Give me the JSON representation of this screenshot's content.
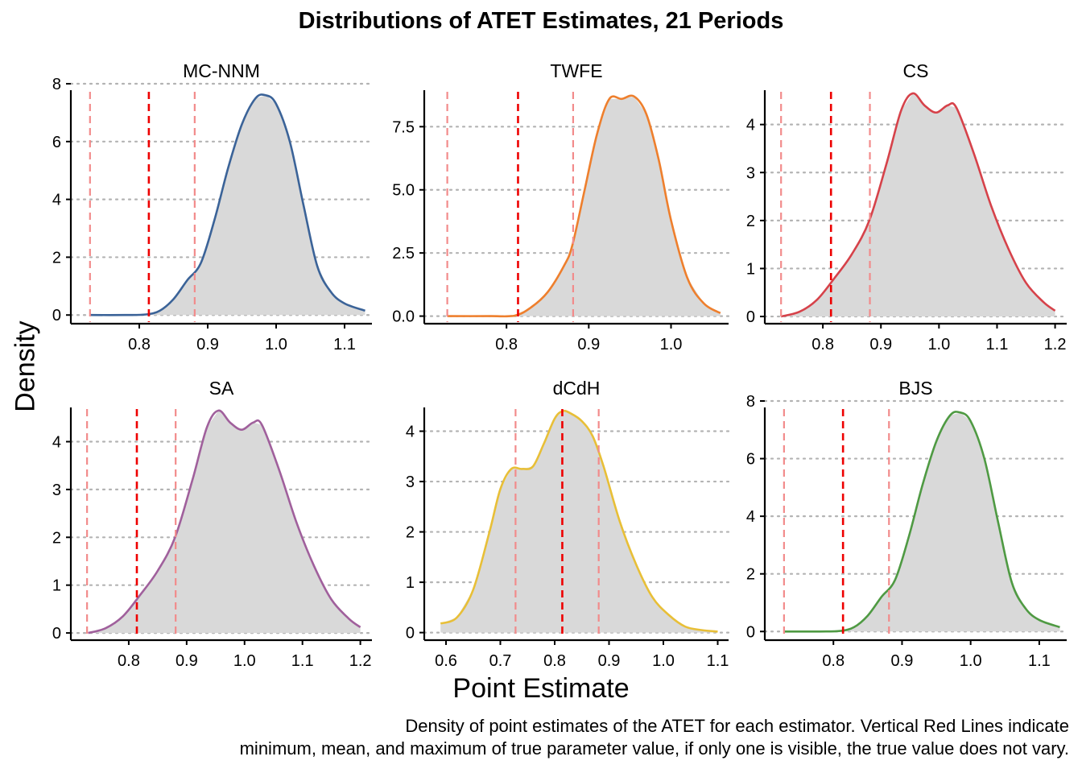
{
  "title": "Distributions of ATET Estimates, 21 Periods",
  "xlabel": "Point Estimate",
  "ylabel": "Density",
  "caption_line1": "Density of point estimates of the ATET for each estimator. Vertical Red Lines indicate",
  "caption_line2": "minimum, mean, and maximum of true parameter value, if only one is visible, the true value does not vary.",
  "colors": {
    "fill": "#d9d9d9",
    "grid": "#b3b3b3",
    "vline_mean": "#ee0000",
    "vline_minmax": "#f28b8b"
  },
  "chart_data": [
    {
      "type": "area",
      "title": "MC-NNM",
      "color": "#3b6398",
      "xlim": [
        0.7,
        1.14
      ],
      "ylim": [
        -0.3,
        8
      ],
      "xticks": [
        0.8,
        0.9,
        1.0
      ],
      "xticks_extra": [
        1.1
      ],
      "xtick_labels": [
        "0.8",
        "0.9",
        "1.0",
        "1.1"
      ],
      "yticks": [
        0,
        2,
        4,
        6,
        8
      ],
      "ytick_labels": [
        "0",
        "2",
        "4",
        "6",
        "8"
      ],
      "vlines": {
        "min": 0.728,
        "mean": 0.814,
        "max": 0.881
      },
      "x": [
        0.728,
        0.78,
        0.81,
        0.83,
        0.85,
        0.87,
        0.89,
        0.91,
        0.93,
        0.95,
        0.97,
        0.985,
        1.0,
        1.02,
        1.04,
        1.06,
        1.08,
        1.1,
        1.13
      ],
      "y": [
        0.0,
        0.0,
        0.02,
        0.15,
        0.55,
        1.2,
        1.8,
        3.3,
        5.1,
        6.6,
        7.5,
        7.6,
        7.3,
        6.0,
        3.8,
        1.7,
        0.8,
        0.4,
        0.15
      ]
    },
    {
      "type": "area",
      "title": "TWFE",
      "color": "#ee7f2d",
      "xlim": [
        0.7,
        1.07
      ],
      "ylim": [
        -0.3,
        9.2
      ],
      "xticks": [
        0.8,
        0.9,
        1.0
      ],
      "xtick_labels": [
        "0.8",
        "0.9",
        "1.0"
      ],
      "yticks": [
        0,
        2.5,
        5,
        7.5
      ],
      "ytick_labels": [
        "0.0",
        "2.5",
        "5.0",
        "7.5"
      ],
      "vlines": {
        "min": 0.728,
        "mean": 0.814,
        "max": 0.881
      },
      "x": [
        0.728,
        0.78,
        0.81,
        0.83,
        0.85,
        0.87,
        0.88,
        0.895,
        0.91,
        0.925,
        0.94,
        0.955,
        0.97,
        0.985,
        1.0,
        1.02,
        1.04,
        1.06
      ],
      "y": [
        0.0,
        0.0,
        0.02,
        0.35,
        0.95,
        2.0,
        2.8,
        5.0,
        7.2,
        8.6,
        8.6,
        8.7,
        8.0,
        6.2,
        3.8,
        1.5,
        0.5,
        0.12
      ]
    },
    {
      "type": "area",
      "title": "CS",
      "color": "#d6424a",
      "xlim": [
        0.7,
        1.22
      ],
      "ylim": [
        -0.15,
        4.85
      ],
      "xticks": [
        0.8,
        0.9,
        1.0,
        1.1,
        1.2
      ],
      "xtick_labels": [
        "0.8",
        "0.9",
        "1.0",
        "1.1",
        "1.2"
      ],
      "yticks": [
        0,
        1,
        2,
        3,
        4
      ],
      "ytick_labels": [
        "0",
        "1",
        "2",
        "3",
        "4"
      ],
      "vlines": {
        "min": 0.728,
        "mean": 0.814,
        "max": 0.881
      },
      "x": [
        0.728,
        0.76,
        0.79,
        0.82,
        0.85,
        0.88,
        0.91,
        0.935,
        0.955,
        0.975,
        0.995,
        1.015,
        1.03,
        1.06,
        1.09,
        1.12,
        1.15,
        1.18,
        1.2
      ],
      "y": [
        0.0,
        0.1,
        0.35,
        0.8,
        1.3,
        2.0,
        3.2,
        4.3,
        4.65,
        4.4,
        4.25,
        4.4,
        4.35,
        3.4,
        2.3,
        1.4,
        0.7,
        0.3,
        0.12
      ]
    },
    {
      "type": "area",
      "title": "SA",
      "color": "#a0609c",
      "xlim": [
        0.7,
        1.22
      ],
      "ylim": [
        -0.15,
        4.85
      ],
      "xticks": [
        0.8,
        0.9,
        1.0,
        1.1,
        1.2
      ],
      "xtick_labels": [
        "0.8",
        "0.9",
        "1.0",
        "1.1",
        "1.2"
      ],
      "yticks": [
        0,
        1,
        2,
        3,
        4
      ],
      "ytick_labels": [
        "0",
        "1",
        "2",
        "3",
        "4"
      ],
      "vlines": {
        "min": 0.728,
        "mean": 0.814,
        "max": 0.881
      },
      "x": [
        0.73,
        0.76,
        0.79,
        0.82,
        0.85,
        0.88,
        0.91,
        0.935,
        0.955,
        0.975,
        0.995,
        1.015,
        1.03,
        1.06,
        1.09,
        1.12,
        1.15,
        1.18,
        1.2
      ],
      "y": [
        0.0,
        0.1,
        0.35,
        0.8,
        1.3,
        2.0,
        3.2,
        4.3,
        4.65,
        4.4,
        4.25,
        4.4,
        4.35,
        3.4,
        2.3,
        1.4,
        0.7,
        0.3,
        0.12
      ]
    },
    {
      "type": "area",
      "title": "dCdH",
      "color": "#e8bf37",
      "xlim": [
        0.56,
        1.12
      ],
      "ylim": [
        -0.15,
        4.6
      ],
      "xticks": [
        0.6,
        0.7,
        0.8,
        0.9,
        1.0,
        1.1
      ],
      "xtick_labels": [
        "0.6",
        "0.7",
        "0.8",
        "0.9",
        "1.0",
        "1.1"
      ],
      "yticks": [
        0,
        1,
        2,
        3,
        4
      ],
      "ytick_labels": [
        "0",
        "1",
        "2",
        "3",
        "4"
      ],
      "vlines": {
        "min": 0.728,
        "mean": 0.814,
        "max": 0.881
      },
      "x": [
        0.59,
        0.62,
        0.65,
        0.68,
        0.7,
        0.72,
        0.74,
        0.76,
        0.78,
        0.8,
        0.815,
        0.83,
        0.85,
        0.87,
        0.89,
        0.92,
        0.95,
        0.98,
        1.01,
        1.04,
        1.07,
        1.1
      ],
      "y": [
        0.18,
        0.3,
        0.85,
        2.0,
        2.85,
        3.25,
        3.25,
        3.3,
        3.75,
        4.25,
        4.4,
        4.35,
        4.2,
        3.9,
        3.3,
        2.2,
        1.35,
        0.7,
        0.35,
        0.12,
        0.05,
        0.02
      ]
    },
    {
      "type": "area",
      "title": "BJS",
      "color": "#4f9a43",
      "xlim": [
        0.7,
        1.14
      ],
      "ylim": [
        -0.3,
        8
      ],
      "xticks": [
        0.8,
        0.9,
        1.0,
        1.1
      ],
      "xtick_labels": [
        "0.8",
        "0.9",
        "1.0",
        "1.1"
      ],
      "yticks": [
        0,
        2,
        4,
        6,
        8
      ],
      "ytick_labels": [
        "0",
        "2",
        "4",
        "6",
        "8"
      ],
      "vlines": {
        "min": 0.728,
        "mean": 0.814,
        "max": 0.881
      },
      "x": [
        0.728,
        0.78,
        0.81,
        0.83,
        0.85,
        0.87,
        0.89,
        0.91,
        0.93,
        0.95,
        0.97,
        0.985,
        1.0,
        1.02,
        1.04,
        1.06,
        1.08,
        1.1,
        1.13
      ],
      "y": [
        0.0,
        0.0,
        0.02,
        0.15,
        0.55,
        1.2,
        1.8,
        3.3,
        5.1,
        6.6,
        7.5,
        7.6,
        7.3,
        6.0,
        3.8,
        1.7,
        0.8,
        0.4,
        0.15
      ]
    }
  ]
}
